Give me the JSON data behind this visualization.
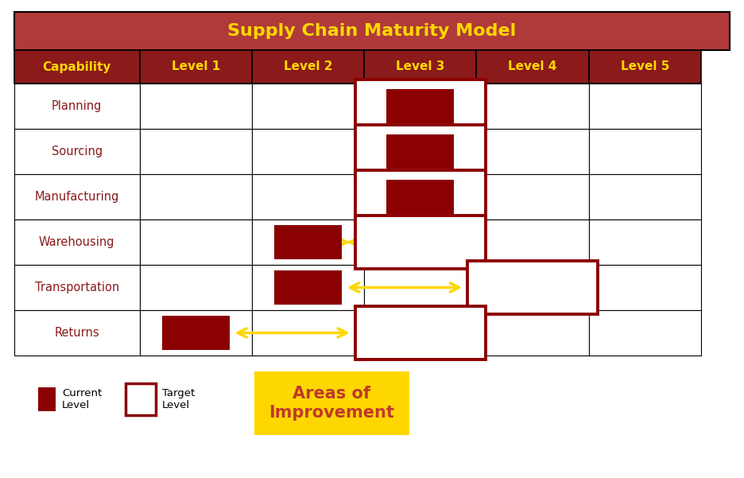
{
  "title": "Supply Chain Maturity Model",
  "title_bg": "#B03A3A",
  "title_color": "#FFD700",
  "header_bg": "#8B1A1A",
  "header_color": "#FFD700",
  "text_color": "#8B1A1A",
  "columns": [
    "Capability",
    "Level 1",
    "Level 2",
    "Level 3",
    "Level 4",
    "Level 5"
  ],
  "rows": [
    "Planning",
    "Sourcing",
    "Manufacturing",
    "Warehousing",
    "Transportation",
    "Returns"
  ],
  "current_level": [
    3,
    3,
    3,
    2,
    2,
    1
  ],
  "target_level": [
    3,
    3,
    3,
    3,
    4,
    3
  ],
  "arrow_color": "#FFD700",
  "current_color": "#8B0000",
  "target_border_color": "#8B0000",
  "improvement_bg": "#FFD700",
  "improvement_text": "#C0392B",
  "improvement_label": "Areas of\nImprovement"
}
